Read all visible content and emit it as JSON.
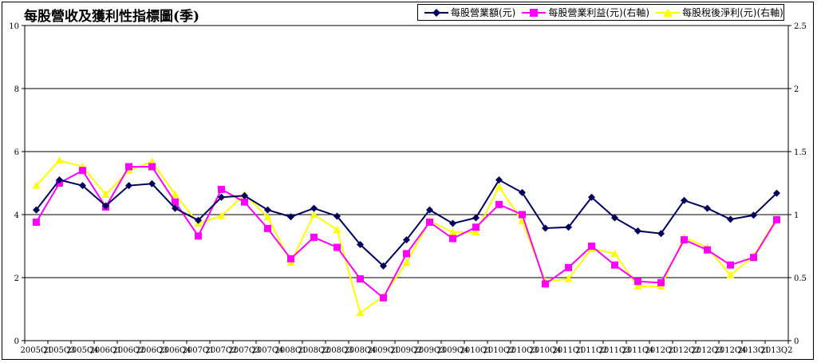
{
  "chart_data": {
    "type": "line",
    "title": "每股營收及獲利性指標圖(季)",
    "categories": [
      "2005Q1",
      "2005Q3",
      "2005Q4",
      "2006Q1",
      "2006Q2",
      "2006Q3",
      "2006Q4",
      "2007Q1",
      "2007Q2",
      "2007Q3",
      "2007Q4",
      "2008Q1",
      "2008Q2",
      "2008Q3",
      "2008Q4",
      "2009Q1",
      "2009Q2",
      "2009Q3",
      "2009Q4",
      "2010Q1",
      "2010Q2",
      "2010Q3",
      "2010Q4",
      "2011Q1",
      "2011Q2",
      "2011Q3",
      "2011Q4",
      "2012Q1",
      "2012Q2",
      "2012Q3",
      "2012Q4",
      "2013Q1",
      "2013Q2"
    ],
    "left_axis": {
      "min": 0,
      "max": 10,
      "ticks": [
        "0",
        "2",
        "4",
        "6",
        "8",
        "10"
      ]
    },
    "right_axis": {
      "min": 0,
      "max": 2.5,
      "ticks": [
        "0",
        "0.5",
        "1",
        "1.5",
        "2",
        "2.5"
      ]
    },
    "grid": true,
    "legend_position": "top-right",
    "series": [
      {
        "name": "每股營業額(元)",
        "axis": "left",
        "color": "#00005a",
        "marker": "diamond",
        "values": [
          4.15,
          5.1,
          4.92,
          4.28,
          4.92,
          4.98,
          4.2,
          3.82,
          4.55,
          4.6,
          4.15,
          3.93,
          4.2,
          3.95,
          3.05,
          2.37,
          3.2,
          4.15,
          3.72,
          3.9,
          5.1,
          4.7,
          3.57,
          3.6,
          4.55,
          3.9,
          3.48,
          3.4,
          4.45,
          4.2,
          3.85,
          3.98,
          4.68
        ]
      },
      {
        "name": "每股營業利益(元)(右軸)",
        "axis": "right",
        "color": "#ff00ff",
        "marker": "square",
        "values": [
          0.94,
          1.25,
          1.35,
          1.06,
          1.38,
          1.38,
          1.1,
          0.83,
          1.2,
          1.1,
          0.89,
          0.65,
          0.82,
          0.74,
          0.49,
          0.34,
          0.69,
          0.94,
          0.81,
          0.9,
          1.08,
          1.0,
          0.45,
          0.58,
          0.75,
          0.6,
          0.47,
          0.46,
          0.8,
          0.72,
          0.6,
          0.66,
          0.96
        ]
      },
      {
        "name": "每股稅後淨利(元)(右軸)",
        "axis": "right",
        "color": "#ffff00",
        "marker": "triangle",
        "values": [
          1.23,
          1.43,
          1.38,
          1.16,
          1.35,
          1.42,
          1.16,
          0.93,
          0.99,
          1.16,
          0.98,
          0.62,
          1.0,
          0.88,
          0.22,
          0.35,
          0.62,
          0.95,
          0.86,
          0.86,
          1.22,
          0.95,
          0.47,
          0.49,
          0.73,
          0.69,
          0.43,
          0.43,
          0.82,
          0.74,
          0.52,
          0.67,
          0.97
        ]
      }
    ]
  }
}
